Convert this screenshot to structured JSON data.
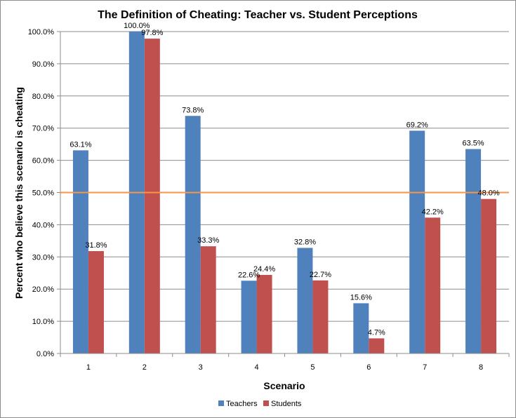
{
  "chart_data": {
    "type": "bar",
    "title": "The Definition of Cheating: Teacher vs. Student Perceptions",
    "xlabel": "Scenario",
    "ylabel": "Percent who believe this scenario is cheating",
    "categories": [
      "1",
      "2",
      "3",
      "4",
      "5",
      "6",
      "7",
      "8"
    ],
    "series": [
      {
        "name": "Teachers",
        "color": "#4F81BD",
        "values": [
          63.1,
          100.0,
          73.8,
          22.6,
          32.8,
          15.6,
          69.2,
          63.5
        ],
        "labels": [
          "63.1%",
          "100.0%",
          "73.8%",
          "22.6%",
          "32.8%",
          "15.6%",
          "69.2%",
          "63.5%"
        ]
      },
      {
        "name": "Students",
        "color": "#C0504D",
        "values": [
          31.8,
          97.8,
          33.3,
          24.4,
          22.7,
          4.7,
          42.2,
          48.0
        ],
        "labels": [
          "31.8%",
          "97.8%",
          "33.3%",
          "24.4%",
          "22.7%",
          "4.7%",
          "42.2%",
          "48.0%"
        ]
      }
    ],
    "ylim": [
      0,
      100
    ],
    "yticks": [
      "0.0%",
      "10.0%",
      "20.0%",
      "30.0%",
      "40.0%",
      "50.0%",
      "60.0%",
      "70.0%",
      "80.0%",
      "90.0%",
      "100.0%"
    ],
    "reference_line": {
      "value": 50,
      "color": "#F79646"
    },
    "grid": true,
    "legend_position": "bottom"
  }
}
